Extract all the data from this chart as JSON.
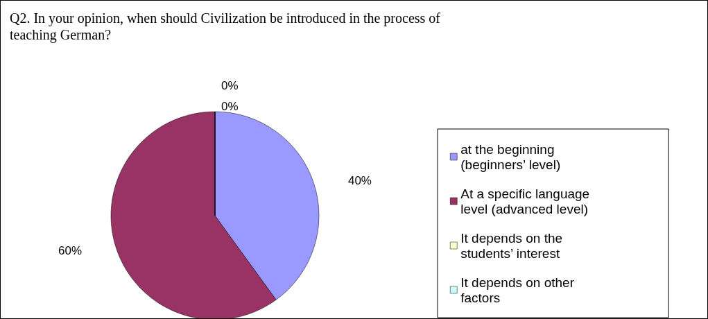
{
  "chart_data": {
    "type": "pie",
    "title": "Q2. In your opinion, when should Civilization be introduced in the process of teaching German?",
    "categories": [
      "at the beginning (beginners’ level)",
      "At a specific language level (advanced level)",
      "It depends on the students’ interest",
      "It depends on other factors"
    ],
    "values": [
      40,
      60,
      0,
      0
    ],
    "colors": [
      "#9999ff",
      "#993366",
      "#ffffcc",
      "#ccffff"
    ],
    "value_labels": [
      "40%",
      "60%",
      "0%",
      "0%"
    ],
    "legend": "right"
  }
}
